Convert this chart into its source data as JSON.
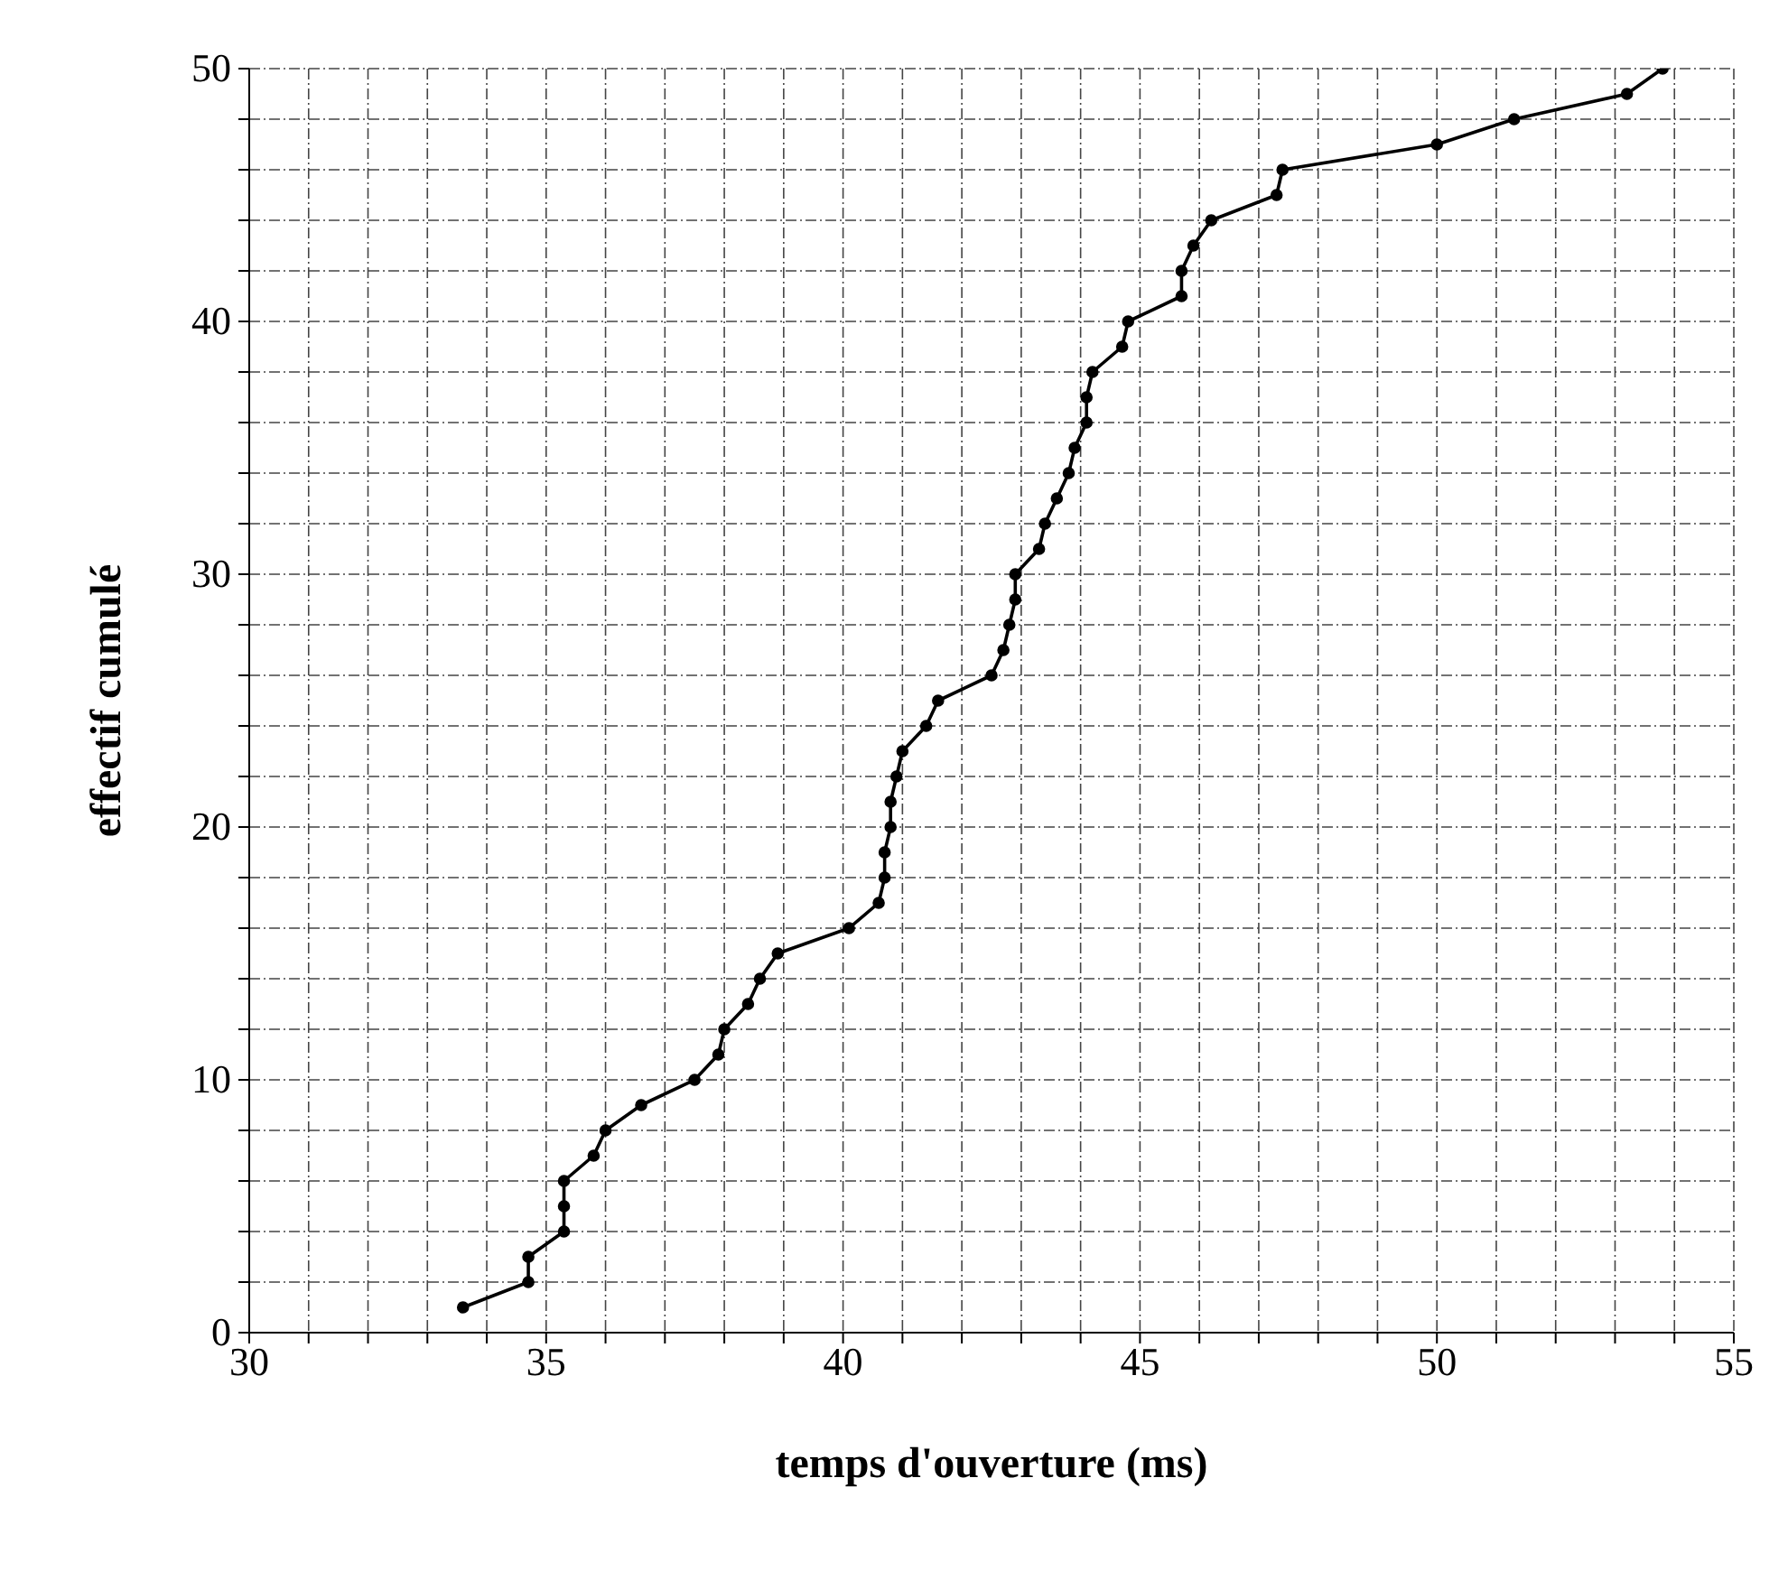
{
  "chart_data": {
    "type": "line",
    "xlabel": "temps d'ouverture (ms)",
    "ylabel": "effectif cumulé",
    "marker": "circle",
    "grid": true,
    "xlim": [
      30,
      55
    ],
    "ylim": [
      0,
      50
    ],
    "xticks": [
      30,
      {
        "value": 31,
        "label": null
      },
      {
        "value": 32,
        "label": null
      },
      {
        "value": 33,
        "label": null
      },
      {
        "value": 34,
        "label": null
      },
      35,
      {
        "value": 36,
        "label": null
      },
      {
        "value": 37,
        "label": null
      },
      {
        "value": 38,
        "label": null
      },
      {
        "value": 39,
        "label": null
      },
      40,
      {
        "value": 41,
        "label": null
      },
      {
        "value": 42,
        "label": null
      },
      {
        "value": 43,
        "label": null
      },
      {
        "value": 44,
        "label": null
      },
      45,
      {
        "value": 46,
        "label": null
      },
      {
        "value": 47,
        "label": null
      },
      {
        "value": 48,
        "label": null
      },
      {
        "value": 49,
        "label": null
      },
      50,
      {
        "value": 51,
        "label": null
      },
      {
        "value": 52,
        "label": null
      },
      {
        "value": 53,
        "label": null
      },
      {
        "value": 54,
        "label": null
      },
      55
    ],
    "yticks": [
      0,
      {
        "value": 2,
        "label": null
      },
      {
        "value": 4,
        "label": null
      },
      {
        "value": 6,
        "label": null
      },
      {
        "value": 8,
        "label": null
      },
      10,
      {
        "value": 12,
        "label": null
      },
      {
        "value": 14,
        "label": null
      },
      {
        "value": 16,
        "label": null
      },
      {
        "value": 18,
        "label": null
      },
      20,
      {
        "value": 22,
        "label": null
      },
      {
        "value": 24,
        "label": null
      },
      {
        "value": 26,
        "label": null
      },
      {
        "value": 28,
        "label": null
      },
      30,
      {
        "value": 32,
        "label": null
      },
      {
        "value": 34,
        "label": null
      },
      {
        "value": 36,
        "label": null
      },
      {
        "value": 38,
        "label": null
      },
      40,
      {
        "value": 42,
        "label": null
      },
      {
        "value": 44,
        "label": null
      },
      {
        "value": 46,
        "label": null
      },
      {
        "value": 48,
        "label": null
      },
      50
    ],
    "series": [
      {
        "color": "#000000",
        "x": [
          33.6,
          34.7,
          34.7,
          35.3,
          35.3,
          35.3,
          35.8,
          36.0,
          36.6,
          37.5,
          37.9,
          38.0,
          38.4,
          38.6,
          38.9,
          40.1,
          40.6,
          40.7,
          40.7,
          40.8,
          40.8,
          40.9,
          41.0,
          41.4,
          41.6,
          42.5,
          42.7,
          42.8,
          42.9,
          42.9,
          43.3,
          43.4,
          43.6,
          43.8,
          43.9,
          44.1,
          44.1,
          44.2,
          44.7,
          44.8,
          45.7,
          45.7,
          45.9,
          46.2,
          47.3,
          47.4,
          50.0,
          51.3,
          53.2,
          53.8
        ],
        "values": [
          1,
          2,
          3,
          4,
          5,
          6,
          7,
          8,
          9,
          10,
          11,
          12,
          13,
          14,
          15,
          16,
          17,
          18,
          19,
          20,
          21,
          22,
          23,
          24,
          25,
          26,
          27,
          28,
          29,
          30,
          31,
          32,
          33,
          34,
          35,
          36,
          37,
          38,
          39,
          40,
          41,
          42,
          43,
          44,
          45,
          46,
          47,
          48,
          49,
          50
        ]
      }
    ]
  }
}
